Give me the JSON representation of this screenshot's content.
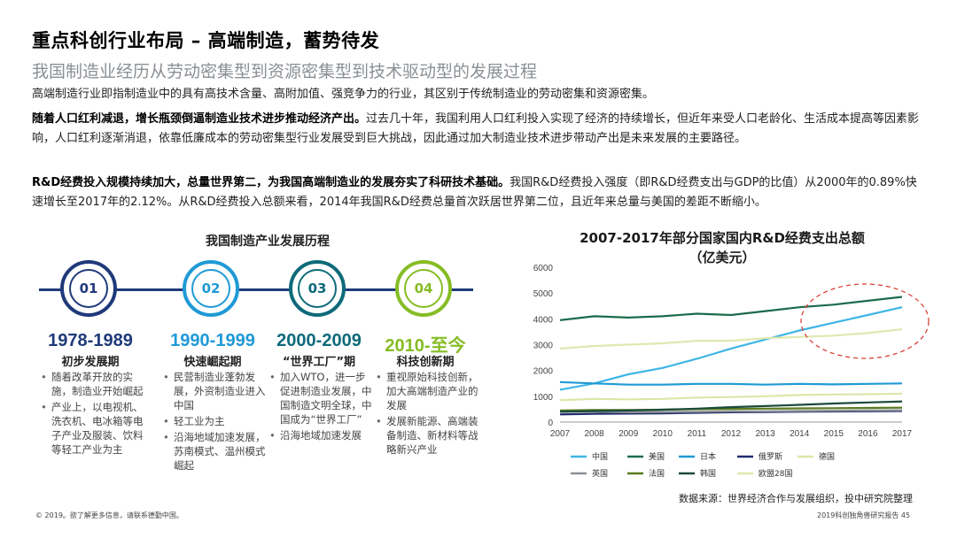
{
  "header": {
    "title": "重点科创行业布局 – 高端制造，蓄势待发",
    "subtitle": "我国制造业经历从劳动密集型到资源密集型到技术驱动型的发展过程"
  },
  "paragraphs": {
    "p1": "高端制造行业即指制造业中的具有高技术含量、高附加值、强竞争力的行业，其区别于传统制造业的劳动密集和资源密集。",
    "p2_bold": "随着人口红利减退，增长瓶颈倒逼制造业技术进步推动经济产出。",
    "p2_rest": "过去几十年，我国利用人口红利投入实现了经济的持续增长，但近年来受人口老龄化、生活成本提高等因素影响，人口红利逐渐消退，依靠低廉成本的劳动密集型行业发展受到巨大挑战，因此通过加大制造业技术进步带动产出是未来发展的主要路径。",
    "p3_bold": "R&D经费投入规模持续加大，总量世界第二，为我国高端制造业的发展夯实了科研技术基础。",
    "p3_rest": "我国R&D经费投入强度（即R&D经费支出与GDP的比值）从2000年的0.89%快速增长至2017年的2.12%。从R&D经费投入总额来看，2014年我国R&D经费总量首次跃居世界第二位，且近年来总量与美国的差距不断缩小。"
  },
  "timeline": {
    "title": "我国制造产业发展历程",
    "items": [
      {
        "num": "01",
        "year": "1978-1989",
        "phase": "初步发展期",
        "color": "#1f3a7a",
        "bullets": [
          "随着改革开放的实施，制造业开始崛起",
          "产业上，以电视机、洗衣机、电冰箱等电子产业及服装、饮料等轻工产业为主"
        ]
      },
      {
        "num": "02",
        "year": "1990-1999",
        "phase": "快速崛起期",
        "color": "#1f9ad6",
        "bullets": [
          "民营制造业蓬勃发展，外资制造业进入中国",
          "轻工业为主",
          "沿海地域加速发展，苏南模式、温州模式崛起"
        ]
      },
      {
        "num": "03",
        "year": "2000-2009",
        "phase": "“世界工厂”期",
        "color": "#0e6a7a",
        "bullets": [
          "加入WTO，进一步促进制造业发展，中国制造文明全球，中国成为“世界工厂”",
          "沿海地域加速发展"
        ]
      },
      {
        "num": "04",
        "year": "2010-至今",
        "phase": "科技创新期",
        "color": "#86bc25",
        "bullets": [
          "重视原始科技创新，加大高端制造产业的发展",
          "发展新能源、高端装备制造、新材料等战略新兴产业"
        ]
      }
    ]
  },
  "chart_data": {
    "type": "line",
    "title": "2007-2017年部分国家国内R&D经费支出总额",
    "unit": "（亿美元）",
    "x": [
      "2007",
      "2008",
      "2009",
      "2010",
      "2011",
      "2012",
      "2013",
      "2014",
      "2015",
      "2016",
      "2017"
    ],
    "ylim": [
      0,
      6000
    ],
    "yticks": [
      0,
      1000,
      2000,
      3000,
      4000,
      5000,
      6000
    ],
    "series": [
      {
        "name": "中国",
        "color": "#3fb6e6",
        "values": [
          1250,
          1500,
          1850,
          2100,
          2450,
          2850,
          3200,
          3550,
          3850,
          4150,
          4450
        ]
      },
      {
        "name": "美国",
        "color": "#1b6b4a",
        "values": [
          3950,
          4100,
          4050,
          4100,
          4200,
          4150,
          4300,
          4450,
          4550,
          4700,
          4850
        ]
      },
      {
        "name": "日本",
        "color": "#1f9ad6",
        "values": [
          1550,
          1500,
          1450,
          1450,
          1480,
          1480,
          1450,
          1480,
          1460,
          1480,
          1500
        ]
      },
      {
        "name": "俄罗斯",
        "color": "#1f2a6b",
        "values": [
          300,
          320,
          330,
          340,
          360,
          380,
          390,
          400,
          410,
          420,
          430
        ]
      },
      {
        "name": "德国",
        "color": "#d8e8a8",
        "values": [
          850,
          900,
          880,
          900,
          950,
          970,
          1000,
          1050,
          1070,
          1080,
          1100
        ]
      },
      {
        "name": "英国",
        "color": "#8a8f94",
        "values": [
          400,
          400,
          380,
          390,
          400,
          420,
          420,
          430,
          440,
          450,
          460
        ]
      },
      {
        "name": "法国",
        "color": "#5a7a1e",
        "values": [
          450,
          470,
          470,
          480,
          500,
          510,
          520,
          530,
          540,
          550,
          560
        ]
      },
      {
        "name": "韩国",
        "color": "#1b4a3a",
        "values": [
          400,
          430,
          450,
          480,
          520,
          580,
          620,
          670,
          720,
          760,
          800
        ]
      },
      {
        "name": "欧盟28国",
        "color": "#e0e8b0",
        "values": [
          2850,
          2950,
          3000,
          3050,
          3150,
          3150,
          3250,
          3300,
          3350,
          3450,
          3600
        ]
      }
    ]
  },
  "source": "数据来源：世界经济合作与发展组织，投中研究院整理",
  "footer": {
    "left": "© 2019。欲了解更多信息，请联系德勤中国。",
    "right": "2019科创独角兽研究报告    45"
  }
}
